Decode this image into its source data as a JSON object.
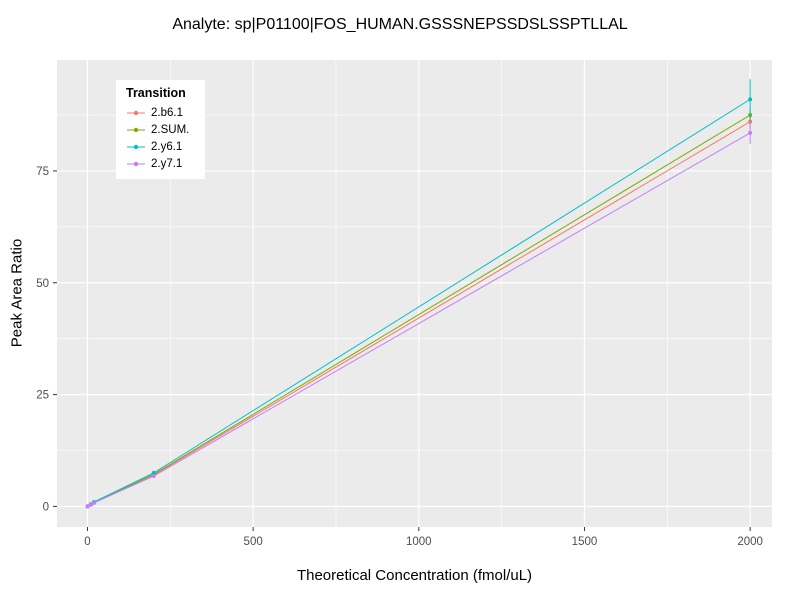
{
  "title": "Analyte: sp|P01100|FOS_HUMAN.GSSSNEPSSDSLSSPTLLAL",
  "chart_data": {
    "type": "line",
    "title": "Analyte: sp|P01100|FOS_HUMAN.GSSSNEPSSDSLSSPTLLAL",
    "xlabel": "Theoretical Concentration (fmol/uL)",
    "ylabel": "Peak Area Ratio",
    "legend_title": "Transition",
    "legend_position": "inside top-left",
    "panel_background": "#EBEBEB",
    "grid_color": "#FFFFFF",
    "tick_label_color": "#4D4D4D",
    "grid": true,
    "xlim": [
      -92,
      2066
    ],
    "ylim": [
      -4.6,
      99.8
    ],
    "xticks": [
      0,
      500,
      1000,
      1500,
      2000
    ],
    "yticks": [
      0,
      25,
      50,
      75
    ],
    "xticks_minor": [
      250,
      750,
      1250,
      1750
    ],
    "yticks_minor": [
      12.5,
      37.5,
      62.5,
      87.5
    ],
    "x": [
      0,
      10,
      20,
      200,
      2000
    ],
    "series": [
      {
        "name": "2.b6.1",
        "color": "#F8766D",
        "values": [
          0,
          0.4,
          0.9,
          7.0,
          86.0
        ],
        "yerr": [
          0,
          0,
          0,
          0.3,
          1.5
        ]
      },
      {
        "name": "2.SUM.",
        "color": "#7CAE00",
        "values": [
          0,
          0.4,
          0.9,
          7.2,
          87.5
        ],
        "yerr": [
          0,
          0,
          0,
          0.3,
          1.5
        ]
      },
      {
        "name": "2.y6.1",
        "color": "#00BFC4",
        "values": [
          0,
          0.5,
          1.0,
          7.5,
          91.0
        ],
        "yerr": [
          0,
          0,
          0,
          0.4,
          4.5
        ]
      },
      {
        "name": "2.y7.1",
        "color": "#C77CFF",
        "values": [
          0,
          0.4,
          0.8,
          6.8,
          83.5
        ],
        "yerr": [
          0,
          0,
          0,
          0.4,
          2.5
        ]
      }
    ]
  }
}
